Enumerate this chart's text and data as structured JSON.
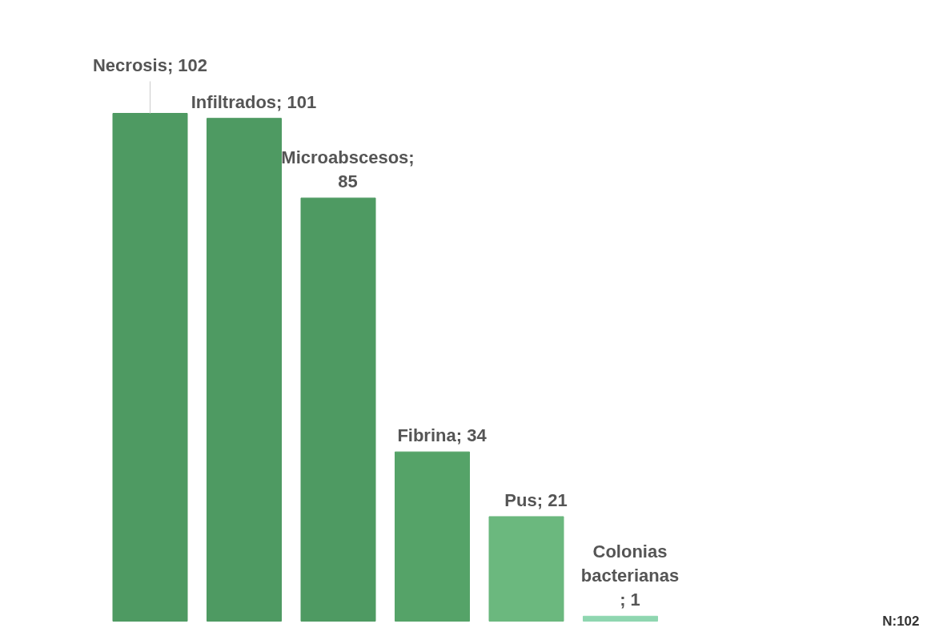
{
  "chart_data": {
    "type": "bar",
    "categories": [
      null,
      null,
      null,
      null,
      null,
      null
    ],
    "values": [
      102,
      101,
      85,
      34,
      21,
      1
    ],
    "colors": [
      "#4e9a62",
      "#4e9a62",
      "#4e9a62",
      "#55a368",
      "#6bb87e",
      "#8fd6b0"
    ],
    "value_labels": [
      "Necrosis; 102",
      "Infiltrados; 101",
      "Microabscesos;\n85",
      "Fibrina; 34",
      "Pus; 21",
      "Colonias\nbacterianas\n; 1"
    ],
    "annotations": [
      "N:102"
    ]
  }
}
